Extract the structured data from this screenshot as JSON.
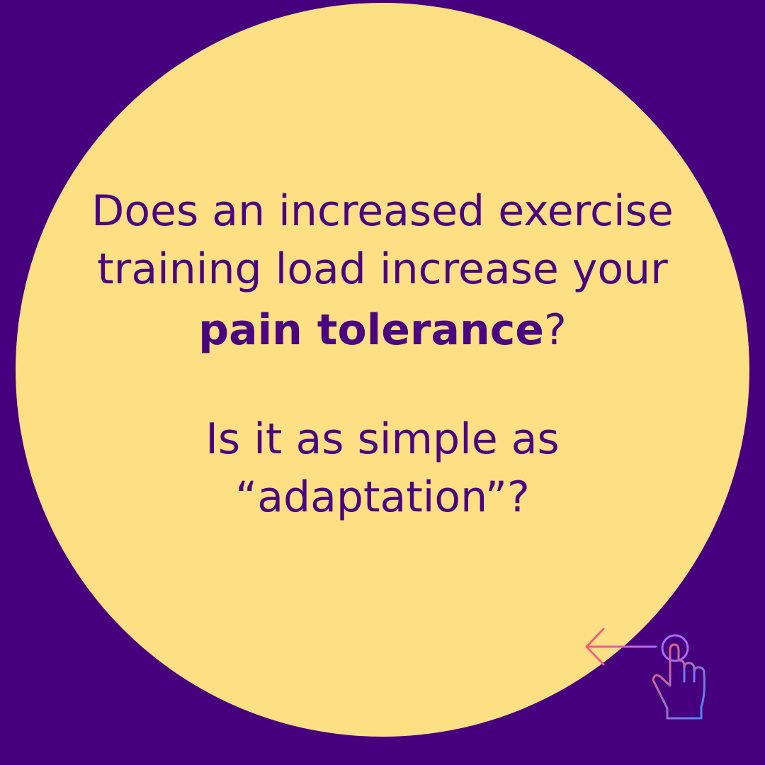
{
  "question": {
    "lines": [
      "Does an increased exercise",
      "training load increase your"
    ],
    "bold": "pain tolerance",
    "end": "?"
  },
  "followup": {
    "lines": [
      "Is it as simple as",
      "“adaptation”?"
    ]
  }
}
